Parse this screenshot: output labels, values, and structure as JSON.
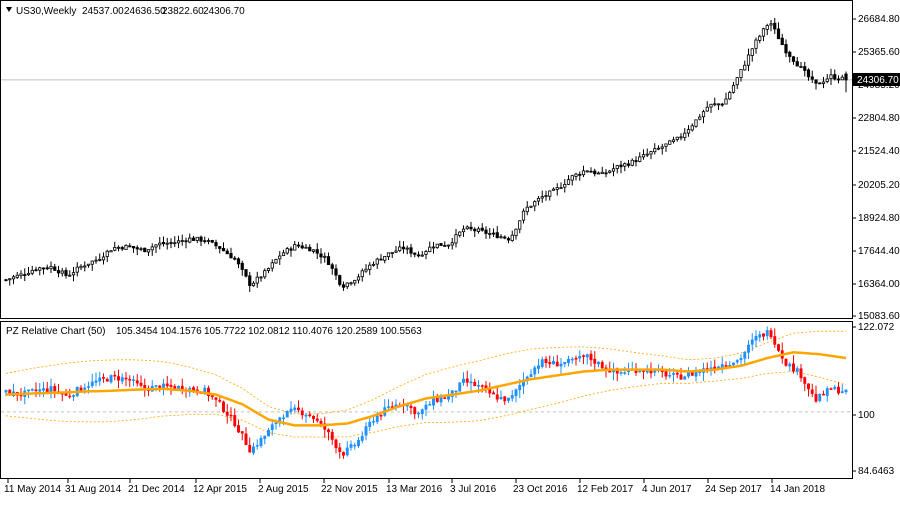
{
  "header": {
    "symbol_label": "US30,Weekly",
    "ohlc": [
      "24537.00",
      "24636.50",
      "23822.60",
      "24306.70"
    ]
  },
  "indicator": {
    "label": "PZ Relative Chart (50)",
    "values": [
      "105.3454",
      "104.1576",
      "105.7722",
      "102.0812",
      "110.4076",
      "120.2589",
      "100.5563"
    ]
  },
  "price_axis": {
    "ticks": [
      "26684.80",
      "25365.60",
      "24085.20",
      "22804.80",
      "21524.40",
      "20205.20",
      "18924.80",
      "17644.40",
      "16364.00",
      "15083.60"
    ],
    "current_price_label": "24306.70"
  },
  "indicator_axis": {
    "ticks": [
      "122.072",
      "100",
      "84.6463"
    ]
  },
  "time_axis": {
    "ticks": [
      "11 May 2014",
      "31 Aug 2014",
      "21 Dec 2014",
      "12 Apr 2015",
      "2 Aug 2015",
      "22 Nov 2015",
      "13 Mar 2016",
      "3 Jul 2016",
      "23 Oct 2016",
      "12 Feb 2017",
      "4 Jun 2017",
      "24 Sep 2017",
      "14 Jan 2018"
    ]
  },
  "colors": {
    "bull": "#1e90ff",
    "bear": "#ff0000",
    "ma": "#ffa500",
    "band": "#ffa500",
    "price_line": "#c0c0c0"
  },
  "chart_data": [
    {
      "type": "candlestick",
      "title": "US30,Weekly",
      "ylim": [
        15083.6,
        27300
      ],
      "grid": false,
      "x": [
        "11 May 2014",
        "31 Aug 2014",
        "21 Dec 2014",
        "12 Apr 2015",
        "2 Aug 2015",
        "22 Nov 2015",
        "13 Mar 2016",
        "3 Jul 2016",
        "23 Oct 2016",
        "12 Feb 2017",
        "4 Jun 2017",
        "24 Sep 2017",
        "14 Jan 2018"
      ],
      "close_path": [
        16500,
        16700,
        16950,
        17000,
        16650,
        17050,
        17300,
        17750,
        17800,
        17650,
        17900,
        17950,
        18100,
        18050,
        17750,
        17300,
        16300,
        16800,
        17500,
        17850,
        17700,
        17300,
        16250,
        16600,
        17150,
        17500,
        17750,
        17450,
        17850,
        17900,
        18500,
        18400,
        18250,
        18100,
        19250,
        19700,
        20000,
        20500,
        20800,
        20600,
        20900,
        21100,
        21400,
        21700,
        22000,
        22600,
        23300,
        23400,
        24500,
        25700,
        26600,
        25500,
        24800,
        24100,
        24450,
        24306.7
      ],
      "last_ohlc": {
        "open": 24537.0,
        "high": 24636.5,
        "low": 23822.6,
        "close": 24306.7
      }
    },
    {
      "type": "line",
      "title": "PZ Relative Chart (50)",
      "ylim": [
        84.6463,
        122.072
      ],
      "grid": false,
      "reference_level": 100,
      "relative_path": [
        105,
        104.5,
        105.5,
        106,
        104,
        106.5,
        108,
        109,
        108.5,
        106,
        106.5,
        106.5,
        106,
        105.5,
        102,
        97,
        90,
        94,
        99,
        100.5,
        99,
        95,
        89,
        92,
        98,
        101,
        102.5,
        99.5,
        103,
        104,
        108,
        106.5,
        104,
        103,
        109,
        113,
        112.5,
        113,
        114.5,
        112,
        110,
        111,
        111,
        110,
        109,
        110,
        111.5,
        112.5,
        113.5,
        119,
        121,
        113,
        110,
        103,
        106,
        105.3454
      ],
      "ma_path": [
        104.5,
        104.8,
        105,
        105.3,
        105.5,
        105.8,
        106,
        105.5,
        104.5,
        102,
        98,
        96.5,
        96.5,
        97,
        99,
        101.5,
        103.5,
        104.5,
        105.5,
        107,
        108.5,
        109.5,
        110.5,
        111,
        111,
        111,
        110.5,
        111,
        112,
        114,
        115.5,
        115,
        114
      ],
      "values": [
        105.3454,
        104.1576,
        105.7722,
        102.0812,
        110.4076,
        120.2589,
        100.5563
      ]
    }
  ]
}
